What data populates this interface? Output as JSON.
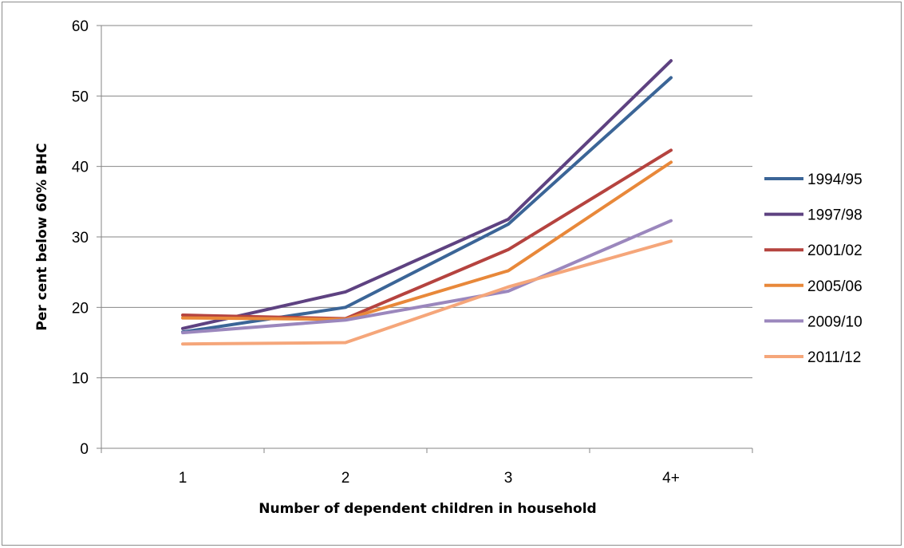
{
  "chart_data": {
    "type": "line",
    "categories": [
      "1",
      "2",
      "3",
      "4+"
    ],
    "xlabel": "Number of dependent children in household",
    "ylabel": "Per cent below 60% BHC",
    "ylim": [
      0,
      60
    ],
    "yticks": [
      0,
      10,
      20,
      30,
      40,
      50,
      60
    ],
    "grid": true,
    "legend_position": "right",
    "series": [
      {
        "name": "1994/95",
        "color": "#3b6597",
        "values": [
          16.5,
          20.0,
          31.8,
          52.6
        ]
      },
      {
        "name": "1997/98",
        "color": "#5e4281",
        "values": [
          17.0,
          22.2,
          32.5,
          55.0
        ]
      },
      {
        "name": "2001/02",
        "color": "#b5433f",
        "values": [
          18.9,
          18.4,
          28.2,
          42.3
        ]
      },
      {
        "name": "2005/06",
        "color": "#e8883a",
        "values": [
          18.5,
          18.3,
          25.2,
          40.6
        ]
      },
      {
        "name": "2009/10",
        "color": "#9b87bd",
        "values": [
          16.4,
          18.2,
          22.3,
          32.3
        ]
      },
      {
        "name": "2011/12",
        "color": "#f5a67a",
        "values": [
          14.8,
          15.0,
          22.9,
          29.4
        ]
      }
    ]
  }
}
